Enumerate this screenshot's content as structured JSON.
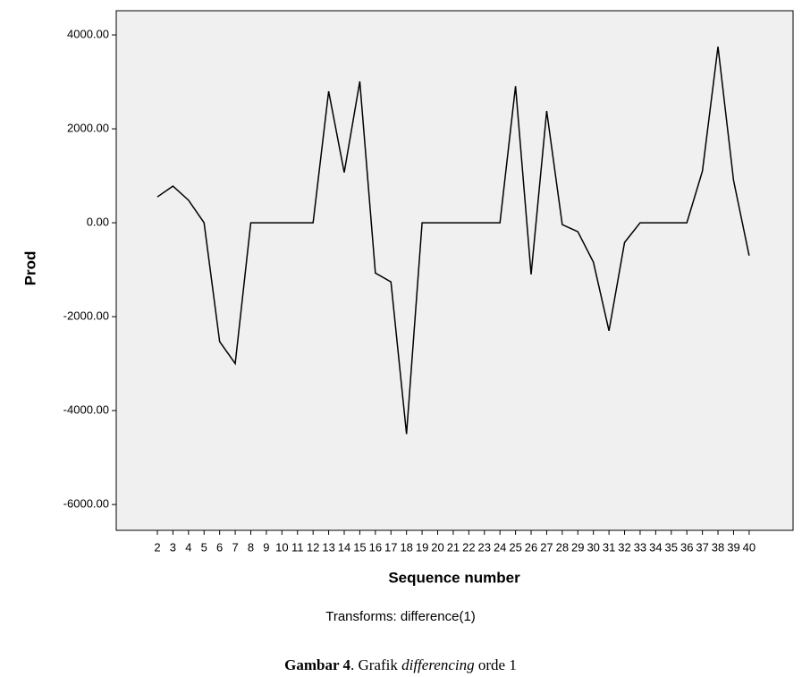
{
  "chart_data": {
    "type": "line",
    "y_label": "Prod",
    "x_label": "Sequence number",
    "note": "Transforms: difference(1)",
    "x": [
      2,
      3,
      4,
      5,
      6,
      7,
      8,
      9,
      10,
      11,
      12,
      13,
      14,
      15,
      16,
      17,
      18,
      19,
      20,
      21,
      22,
      23,
      24,
      25,
      26,
      27,
      28,
      29,
      30,
      31,
      32,
      33,
      34,
      35,
      36,
      37,
      38,
      39,
      40
    ],
    "series": [
      {
        "color": "#000000",
        "values": [
          550,
          780,
          480,
          0,
          -2530,
          -3000,
          0,
          0,
          0,
          0,
          0,
          2800,
          1070,
          3010,
          -1070,
          -1260,
          -4500,
          0,
          0,
          0,
          0,
          0,
          0,
          2910,
          -1100,
          2380,
          -40,
          -190,
          -840,
          -2300,
          -420,
          0,
          0,
          0,
          0,
          1100,
          3750,
          900,
          -700
        ]
      }
    ],
    "xlim": [
      -0.64,
      42.82
    ],
    "xticks": [
      2,
      3,
      4,
      5,
      6,
      7,
      8,
      9,
      10,
      11,
      12,
      13,
      14,
      15,
      16,
      17,
      18,
      19,
      20,
      21,
      22,
      23,
      24,
      25,
      26,
      27,
      28,
      29,
      30,
      31,
      32,
      33,
      34,
      35,
      36,
      37,
      38,
      39,
      40
    ],
    "ylim": [
      -6550,
      4515
    ],
    "yticks": [
      {
        "value": 4000,
        "label": "4000.00"
      },
      {
        "value": 2000,
        "label": "2000.00"
      },
      {
        "value": 0,
        "label": "0.00"
      },
      {
        "value": -2000,
        "label": "-2000.00"
      },
      {
        "value": -4000,
        "label": "-4000.00"
      },
      {
        "value": -6000,
        "label": "-6000.00"
      }
    ],
    "background": "#f0f0f0"
  },
  "caption": {
    "label": "Gambar 4",
    "text": ". Grafik",
    "term": "differencing",
    "suffix": "orde 1"
  }
}
